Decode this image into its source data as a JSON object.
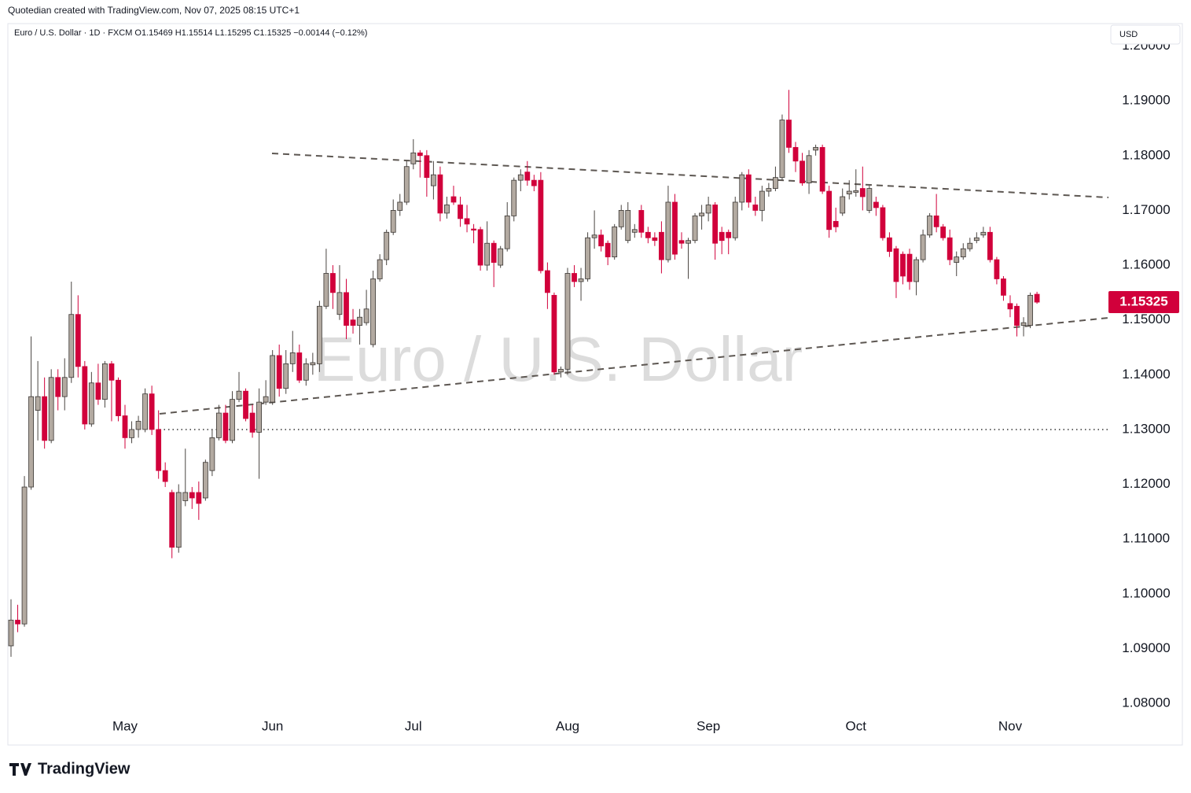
{
  "chart_data": {
    "type": "candlestick",
    "header": "Quotedian created with TradingView.com, Nov 07, 2025 08:15 UTC+1",
    "title": "Euro / U.S. Dollar",
    "subtitle": "Euro / U.S. Dollar · 1D · FXCM  O1.15469  H1.15514  L1.15295  C1.15325  −0.00144 (−0.12%)",
    "currency": "USD",
    "brand": "TradingView",
    "up_color": "#b3aaa1",
    "down_color": "#d1003b",
    "level": 1.13,
    "ylim": [
      1.078,
      1.2041
    ],
    "yticks": [
      {
        "value": 1.08,
        "label": "1.08000"
      },
      {
        "value": 1.09,
        "label": "1.09000"
      },
      {
        "value": 1.1,
        "label": "1.10000"
      },
      {
        "value": 1.11,
        "label": "1.11000"
      },
      {
        "value": 1.12,
        "label": "1.12000"
      },
      {
        "value": 1.13,
        "label": "1.13000"
      },
      {
        "value": 1.14,
        "label": "1.14000"
      },
      {
        "value": 1.15,
        "label": "1.15000"
      },
      {
        "value": 1.16,
        "label": "1.16000"
      },
      {
        "value": 1.17,
        "label": "1.17000"
      },
      {
        "value": 1.18,
        "label": "1.18000"
      },
      {
        "value": 1.19,
        "label": "1.19000"
      },
      {
        "value": 1.2,
        "label": "1.20000"
      }
    ],
    "categories": [
      null,
      null,
      null,
      null,
      null,
      null,
      null,
      null,
      null,
      null,
      null,
      null,
      null,
      null,
      null,
      null,
      null,
      "May",
      null,
      null,
      null,
      null,
      null,
      null,
      null,
      null,
      null,
      null,
      null,
      null,
      null,
      null,
      null,
      null,
      null,
      null,
      null,
      null,
      null,
      "Jun",
      null,
      null,
      null,
      null,
      null,
      null,
      null,
      null,
      null,
      null,
      null,
      null,
      null,
      null,
      null,
      null,
      null,
      null,
      null,
      null,
      "Jul",
      null,
      null,
      null,
      null,
      null,
      null,
      null,
      null,
      null,
      null,
      null,
      null,
      null,
      null,
      null,
      null,
      null,
      null,
      null,
      null,
      null,
      null,
      "Aug",
      null,
      null,
      null,
      null,
      null,
      null,
      null,
      null,
      null,
      null,
      null,
      null,
      null,
      null,
      null,
      null,
      null,
      null,
      null,
      null,
      "Sep",
      null,
      null,
      null,
      null,
      null,
      null,
      null,
      null,
      null,
      null,
      null,
      null,
      null,
      null,
      null,
      null,
      null,
      null,
      null,
      null,
      null,
      "Oct",
      null,
      null,
      null,
      null,
      null,
      null,
      null,
      null,
      null,
      null,
      null,
      null,
      null,
      null,
      null,
      null,
      null,
      null,
      null,
      null,
      null,
      null,
      "Nov",
      null,
      null,
      null,
      null
    ],
    "open": [
      1.0905,
      1.0952,
      1.0945,
      1.1195,
      1.1335,
      1.136,
      1.128,
      1.1395,
      1.136,
      1.1395,
      1.151,
      1.1415,
      1.131,
      1.1385,
      1.1355,
      1.142,
      1.139,
      1.1325,
      1.1285,
      1.13,
      1.13,
      1.1365,
      1.13,
      1.1225,
      1.1185,
      1.1085,
      1.117,
      1.1185,
      1.1185,
      1.1175,
      1.1225,
      1.1285,
      1.133,
      1.128,
      1.1355,
      1.137,
      1.133,
      1.1295,
      1.135,
      1.135,
      1.1435,
      1.1375,
      1.142,
      1.144,
      1.139,
      1.1418,
      1.142,
      1.1525,
      1.1585,
      1.151,
      1.155,
      1.15,
      1.149,
      1.1495,
      1.1455,
      1.1575,
      1.161,
      1.166,
      1.17,
      1.1715,
      1.1785,
      1.1805,
      1.18,
      1.1745,
      1.1765,
      1.1695,
      1.1725,
      1.171,
      1.1685,
      1.1666,
      1.1665,
      1.16,
      1.164,
      1.16,
      1.163,
      1.169,
      1.1755,
      1.177,
      1.1755,
      1.1755,
      1.159,
      1.1545,
      1.1405,
      1.141,
      1.1585,
      1.157,
      1.1575,
      1.165,
      1.1655,
      1.164,
      1.1615,
      1.167,
      1.1645,
      1.166,
      1.17,
      1.166,
      1.165,
      1.166,
      1.161,
      1.1715,
      1.1645,
      1.164,
      1.1645,
      1.169,
      1.1695,
      1.171,
      1.166,
      1.166,
      1.165,
      1.1715,
      1.1765,
      1.171,
      1.17,
      1.1735,
      1.174,
      1.176,
      1.1865,
      1.1815,
      1.179,
      1.175,
      1.181,
      1.1815,
      1.1735,
      1.168,
      1.1695,
      1.173,
      1.1733,
      1.174,
      1.17,
      1.1715,
      1.1705,
      1.165,
      1.163,
      1.162,
      1.162,
      1.157,
      1.161,
      1.1655,
      1.169,
      1.167,
      1.165,
      1.1605,
      1.1615,
      1.163,
      1.1645,
      1.1655,
      1.166,
      1.161,
      1.1575,
      1.153,
      1.1525,
      1.149,
      1.149,
      1.15469
    ],
    "high": [
      1.099,
      1.098,
      1.1215,
      1.147,
      1.1425,
      1.1395,
      1.141,
      1.141,
      1.143,
      1.157,
      1.1545,
      1.1425,
      1.1405,
      1.142,
      1.1425,
      1.1425,
      1.1395,
      1.1345,
      1.1315,
      1.1325,
      1.1375,
      1.138,
      1.1335,
      1.124,
      1.119,
      1.12,
      1.1265,
      1.1195,
      1.1205,
      1.1245,
      1.13,
      1.1345,
      1.1345,
      1.137,
      1.1405,
      1.1375,
      1.1345,
      1.1375,
      1.139,
      1.1445,
      1.1455,
      1.1445,
      1.148,
      1.1455,
      1.143,
      1.144,
      1.1535,
      1.163,
      1.16,
      1.16,
      1.1575,
      1.152,
      1.152,
      1.1555,
      1.159,
      1.162,
      1.1665,
      1.172,
      1.173,
      1.179,
      1.183,
      1.181,
      1.181,
      1.179,
      1.178,
      1.1725,
      1.1745,
      1.1725,
      1.171,
      1.1675,
      1.167,
      1.168,
      1.1645,
      1.1635,
      1.1715,
      1.176,
      1.1775,
      1.179,
      1.1765,
      1.177,
      1.1605,
      1.155,
      1.1415,
      1.1595,
      1.16,
      1.1595,
      1.166,
      1.17,
      1.1665,
      1.1645,
      1.1675,
      1.171,
      1.1715,
      1.1675,
      1.171,
      1.167,
      1.166,
      1.168,
      1.1745,
      1.173,
      1.166,
      1.165,
      1.1695,
      1.171,
      1.1725,
      1.1715,
      1.167,
      1.1665,
      1.1725,
      1.177,
      1.1775,
      1.1725,
      1.1745,
      1.175,
      1.178,
      1.1875,
      1.192,
      1.1825,
      1.1805,
      1.181,
      1.182,
      1.182,
      1.1745,
      1.1705,
      1.174,
      1.1755,
      1.1775,
      1.178,
      1.1745,
      1.1725,
      1.171,
      1.166,
      1.1635,
      1.1625,
      1.163,
      1.1615,
      1.1665,
      1.1695,
      1.173,
      1.1675,
      1.1665,
      1.1625,
      1.164,
      1.165,
      1.166,
      1.167,
      1.167,
      1.1615,
      1.158,
      1.1545,
      1.153,
      1.1505,
      1.155,
      1.15514
    ],
    "low": [
      1.0885,
      1.093,
      1.094,
      1.119,
      1.128,
      1.1265,
      1.1275,
      1.1335,
      1.1335,
      1.1385,
      1.1395,
      1.13,
      1.1305,
      1.1345,
      1.134,
      1.1315,
      1.1315,
      1.1265,
      1.1275,
      1.1285,
      1.1295,
      1.129,
      1.121,
      1.1195,
      1.1065,
      1.1075,
      1.116,
      1.1155,
      1.1135,
      1.117,
      1.1215,
      1.128,
      1.1275,
      1.1275,
      1.135,
      1.1315,
      1.1285,
      1.121,
      1.1345,
      1.1345,
      1.136,
      1.1365,
      1.1405,
      1.1385,
      1.138,
      1.14,
      1.1405,
      1.152,
      1.152,
      1.15,
      1.1465,
      1.1475,
      1.1455,
      1.149,
      1.145,
      1.157,
      1.16,
      1.1655,
      1.169,
      1.171,
      1.1775,
      1.176,
      1.1725,
      1.172,
      1.168,
      1.1685,
      1.171,
      1.167,
      1.166,
      1.164,
      1.159,
      1.159,
      1.156,
      1.1595,
      1.1625,
      1.168,
      1.1735,
      1.1745,
      1.1735,
      1.1585,
      1.152,
      1.14,
      1.1395,
      1.14,
      1.156,
      1.1535,
      1.157,
      1.163,
      1.1625,
      1.16,
      1.161,
      1.1665,
      1.164,
      1.165,
      1.165,
      1.164,
      1.1635,
      1.1585,
      1.1605,
      1.161,
      1.163,
      1.1575,
      1.164,
      1.1665,
      1.168,
      1.161,
      1.162,
      1.162,
      1.1645,
      1.17,
      1.1705,
      1.169,
      1.168,
      1.1725,
      1.1735,
      1.1755,
      1.1805,
      1.177,
      1.1745,
      1.173,
      1.18,
      1.173,
      1.165,
      1.166,
      1.169,
      1.172,
      1.1725,
      1.17,
      1.1695,
      1.169,
      1.1645,
      1.1615,
      1.154,
      1.1565,
      1.1555,
      1.1545,
      1.1605,
      1.165,
      1.166,
      1.1645,
      1.16,
      1.158,
      1.161,
      1.1625,
      1.164,
      1.165,
      1.1605,
      1.1565,
      1.1535,
      1.1505,
      1.147,
      1.147,
      1.1485,
      1.15295
    ],
    "close": [
      1.0952,
      1.0945,
      1.1195,
      1.136,
      1.136,
      1.128,
      1.1395,
      1.136,
      1.1395,
      1.151,
      1.1415,
      1.131,
      1.1385,
      1.1355,
      1.142,
      1.139,
      1.1325,
      1.1285,
      1.13,
      1.1315,
      1.1365,
      1.13,
      1.1225,
      1.1205,
      1.1085,
      1.1185,
      1.1185,
      1.1175,
      1.1165,
      1.124,
      1.1285,
      1.133,
      1.128,
      1.1355,
      1.137,
      1.132,
      1.1295,
      1.135,
      1.136,
      1.1435,
      1.1375,
      1.142,
      1.144,
      1.139,
      1.142,
      1.1422,
      1.1525,
      1.1585,
      1.155,
      1.155,
      1.149,
      1.149,
      1.1505,
      1.152,
      1.1575,
      1.161,
      1.166,
      1.17,
      1.1715,
      1.178,
      1.1805,
      1.18,
      1.176,
      1.1765,
      1.1695,
      1.171,
      1.1715,
      1.1685,
      1.1675,
      1.1664,
      1.16,
      1.164,
      1.1605,
      1.163,
      1.169,
      1.1755,
      1.1765,
      1.1755,
      1.1745,
      1.159,
      1.155,
      1.1405,
      1.141,
      1.1585,
      1.157,
      1.1575,
      1.165,
      1.1655,
      1.1635,
      1.1615,
      1.167,
      1.17,
      1.17,
      1.1665,
      1.166,
      1.165,
      1.1645,
      1.161,
      1.1715,
      1.162,
      1.164,
      1.1645,
      1.169,
      1.1695,
      1.171,
      1.164,
      1.1645,
      1.165,
      1.1715,
      1.1765,
      1.1715,
      1.17,
      1.1735,
      1.174,
      1.176,
      1.1865,
      1.1815,
      1.179,
      1.175,
      1.18,
      1.1815,
      1.1735,
      1.1665,
      1.167,
      1.1725,
      1.1735,
      1.1736,
      1.1725,
      1.174,
      1.1705,
      1.165,
      1.1625,
      1.157,
      1.158,
      1.157,
      1.161,
      1.1655,
      1.169,
      1.167,
      1.165,
      1.161,
      1.1615,
      1.163,
      1.164,
      1.165,
      1.166,
      1.161,
      1.1575,
      1.1545,
      1.152,
      1.149,
      1.1495,
      1.1545,
      1.15325
    ]
  }
}
